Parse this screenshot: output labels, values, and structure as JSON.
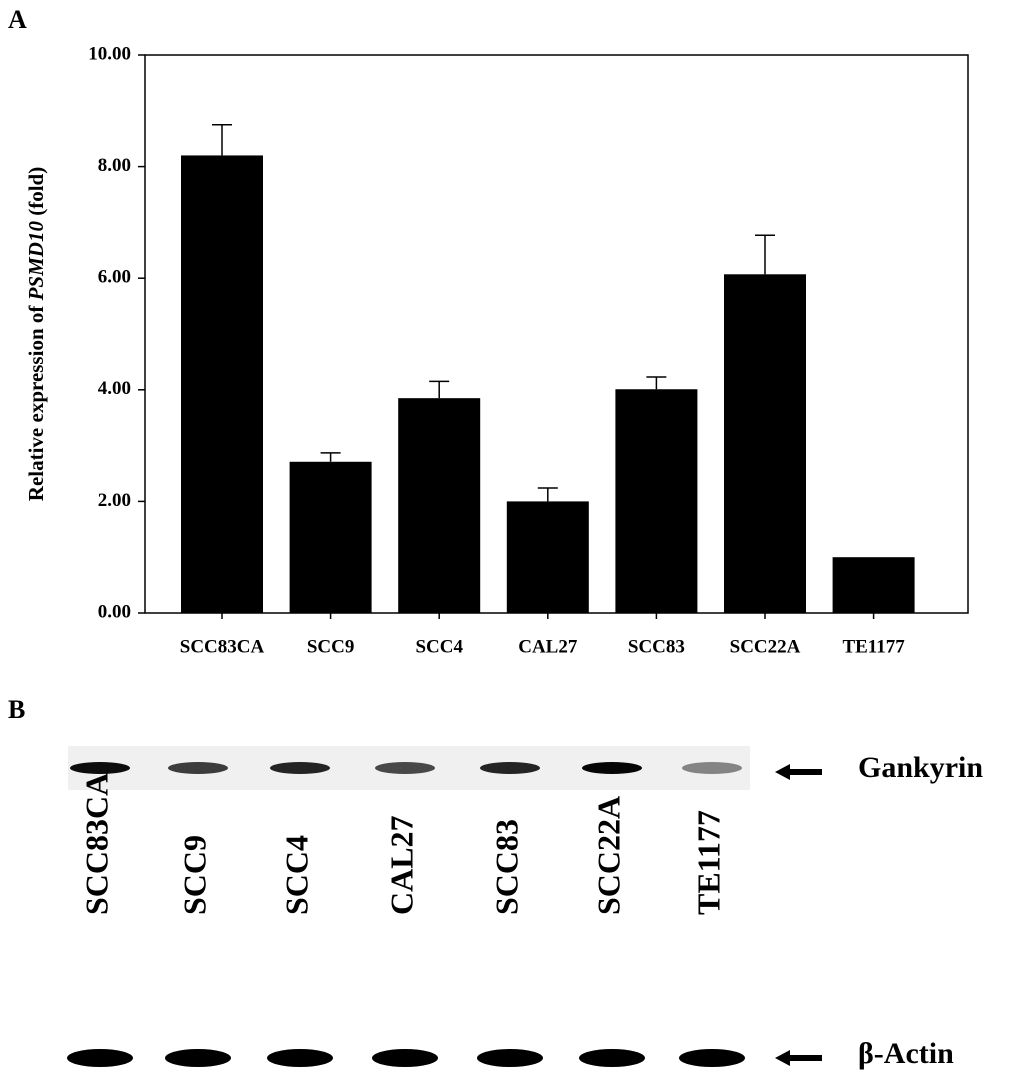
{
  "panels": [
    "A",
    "B"
  ],
  "chart_data": {
    "type": "bar",
    "ylabel": [
      "Relative expression of ",
      "PSMD10",
      " (fold)"
    ],
    "categories": [
      "SCC83CA",
      "SCC9",
      "SCC4",
      "CAL27",
      "SCC83",
      "SCC22A",
      "TE1177"
    ],
    "values": [
      8.2,
      2.71,
      3.85,
      2.0,
      4.01,
      6.07,
      1.0
    ],
    "errors": [
      0.55,
      0.16,
      0.3,
      0.24,
      0.22,
      0.7,
      0
    ],
    "color": "#000000",
    "ylim": [
      0,
      10
    ],
    "yticks": [
      {
        "value": 0,
        "label": "0.00"
      },
      {
        "value": 2,
        "label": "2.00"
      },
      {
        "value": 4,
        "label": "4.00"
      },
      {
        "value": 6,
        "label": "6.00"
      },
      {
        "value": 8,
        "label": "8.00"
      },
      {
        "value": 10,
        "label": "10.00"
      }
    ],
    "grid": false
  },
  "blot": {
    "lanes": [
      "SCC83CA",
      "SCC9",
      "SCC4",
      "CAL27",
      "SCC83",
      "SCC22A",
      "TE1177"
    ],
    "bands": [
      "Gankyrin",
      "β-Actin"
    ]
  }
}
